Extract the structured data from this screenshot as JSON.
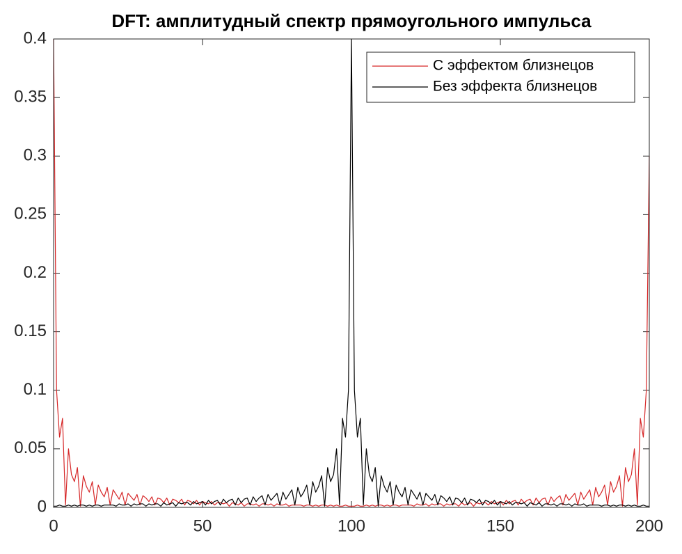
{
  "chart_data": {
    "type": "line",
    "title": "DFT: амплитудный спектр прямоугольного импульса",
    "xlim": [
      0,
      200
    ],
    "ylim": [
      0,
      0.4
    ],
    "xticks": [
      0,
      50,
      100,
      150,
      200
    ],
    "yticks": [
      0,
      0.05,
      0.1,
      0.15,
      0.2,
      0.25,
      0.3,
      0.35,
      0.4
    ],
    "grid": false,
    "legend": "northeast",
    "x": [
      0,
      1,
      2,
      3,
      4,
      5,
      6,
      7,
      8,
      9,
      10,
      11,
      12,
      13,
      14,
      15,
      16,
      17,
      18,
      19,
      20,
      21,
      22,
      23,
      24,
      25,
      26,
      27,
      28,
      29,
      30,
      31,
      32,
      33,
      34,
      35,
      36,
      37,
      38,
      39,
      40,
      41,
      42,
      43,
      44,
      45,
      46,
      47,
      48,
      49,
      50,
      51,
      52,
      53,
      54,
      55,
      56,
      57,
      58,
      59,
      60,
      61,
      62,
      63,
      64,
      65,
      66,
      67,
      68,
      69,
      70,
      71,
      72,
      73,
      74,
      75,
      76,
      77,
      78,
      79,
      80,
      81,
      82,
      83,
      84,
      85,
      86,
      87,
      88,
      89,
      90,
      91,
      92,
      93,
      94,
      95,
      96,
      97,
      98,
      99,
      100,
      101,
      102,
      103,
      104,
      105,
      106,
      107,
      108,
      109,
      110,
      111,
      112,
      113,
      114,
      115,
      116,
      117,
      118,
      119,
      120,
      121,
      122,
      123,
      124,
      125,
      126,
      127,
      128,
      129,
      130,
      131,
      132,
      133,
      134,
      135,
      136,
      137,
      138,
      139,
      140,
      141,
      142,
      143,
      144,
      145,
      146,
      147,
      148,
      149,
      150,
      151,
      152,
      153,
      154,
      155,
      156,
      157,
      158,
      159,
      160,
      161,
      162,
      163,
      164,
      165,
      166,
      167,
      168,
      169,
      170,
      171,
      172,
      173,
      174,
      175,
      176,
      177,
      178,
      179,
      180,
      181,
      182,
      183,
      184,
      185,
      186,
      187,
      188,
      189,
      190,
      191,
      192,
      193,
      194,
      195,
      196,
      197,
      198,
      199,
      200
    ],
    "series": [
      {
        "name": "С эффектом близнецов",
        "color": "#d62728",
        "values": [
          0.4,
          0.1,
          0.06,
          0.076,
          0.002,
          0.05,
          0.028,
          0.022,
          0.034,
          0.001,
          0.027,
          0.018,
          0.013,
          0.022,
          0.002,
          0.019,
          0.013,
          0.009,
          0.017,
          0.002,
          0.015,
          0.011,
          0.007,
          0.013,
          0.002,
          0.012,
          0.009,
          0.006,
          0.011,
          0.002,
          0.01,
          0.008,
          0.005,
          0.009,
          0.002,
          0.008,
          0.007,
          0.004,
          0.008,
          0.002,
          0.007,
          0.006,
          0.004,
          0.007,
          0.002,
          0.006,
          0.005,
          0.003,
          0.006,
          0.002,
          0.005,
          0.004,
          0.003,
          0.005,
          0.002,
          0.004,
          0.004,
          0.003,
          0.004,
          0.001,
          0.004,
          0.003,
          0.002,
          0.004,
          0.001,
          0.003,
          0.003,
          0.002,
          0.003,
          0.001,
          0.003,
          0.003,
          0.002,
          0.003,
          0.001,
          0.003,
          0.002,
          0.002,
          0.003,
          0.001,
          0.002,
          0.002,
          0.002,
          0.002,
          0.001,
          0.002,
          0.002,
          0.001,
          0.002,
          0.001,
          0.002,
          0.002,
          0.001,
          0.002,
          0.001,
          0.002,
          0.001,
          0.001,
          0.002,
          0.001,
          0.001,
          0.001,
          0.002,
          0.001,
          0.001,
          0.002,
          0.001,
          0.002,
          0.001,
          0.002,
          0.002,
          0.001,
          0.002,
          0.001,
          0.002,
          0.002,
          0.001,
          0.002,
          0.002,
          0.002,
          0.002,
          0.001,
          0.003,
          0.002,
          0.002,
          0.003,
          0.001,
          0.003,
          0.002,
          0.003,
          0.003,
          0.001,
          0.003,
          0.002,
          0.003,
          0.003,
          0.001,
          0.004,
          0.002,
          0.003,
          0.004,
          0.001,
          0.004,
          0.003,
          0.004,
          0.004,
          0.002,
          0.005,
          0.003,
          0.004,
          0.005,
          0.002,
          0.006,
          0.003,
          0.005,
          0.006,
          0.002,
          0.007,
          0.004,
          0.006,
          0.007,
          0.002,
          0.008,
          0.004,
          0.007,
          0.008,
          0.002,
          0.009,
          0.005,
          0.008,
          0.01,
          0.002,
          0.011,
          0.006,
          0.009,
          0.012,
          0.002,
          0.013,
          0.007,
          0.011,
          0.015,
          0.002,
          0.017,
          0.009,
          0.013,
          0.019,
          0.002,
          0.022,
          0.013,
          0.018,
          0.027,
          0.001,
          0.034,
          0.022,
          0.028,
          0.05,
          0.002,
          0.076,
          0.06,
          0.1,
          0.3
        ]
      },
      {
        "name": "Без эффекта близнецов",
        "color": "#000000",
        "values": [
          0.001,
          0.001,
          0.002,
          0.001,
          0.001,
          0.002,
          0.001,
          0.002,
          0.001,
          0.002,
          0.002,
          0.001,
          0.002,
          0.001,
          0.002,
          0.002,
          0.001,
          0.002,
          0.002,
          0.002,
          0.002,
          0.001,
          0.003,
          0.002,
          0.002,
          0.003,
          0.001,
          0.003,
          0.002,
          0.003,
          0.003,
          0.001,
          0.003,
          0.002,
          0.003,
          0.003,
          0.001,
          0.004,
          0.002,
          0.003,
          0.004,
          0.001,
          0.004,
          0.003,
          0.004,
          0.004,
          0.002,
          0.005,
          0.003,
          0.004,
          0.005,
          0.002,
          0.006,
          0.003,
          0.005,
          0.006,
          0.002,
          0.007,
          0.004,
          0.006,
          0.007,
          0.002,
          0.008,
          0.004,
          0.007,
          0.008,
          0.002,
          0.009,
          0.005,
          0.008,
          0.01,
          0.002,
          0.011,
          0.006,
          0.009,
          0.012,
          0.002,
          0.013,
          0.007,
          0.011,
          0.015,
          0.002,
          0.017,
          0.009,
          0.013,
          0.019,
          0.002,
          0.022,
          0.013,
          0.018,
          0.027,
          0.001,
          0.034,
          0.022,
          0.028,
          0.05,
          0.002,
          0.076,
          0.06,
          0.1,
          0.4,
          0.1,
          0.06,
          0.076,
          0.002,
          0.05,
          0.028,
          0.022,
          0.034,
          0.001,
          0.027,
          0.018,
          0.013,
          0.022,
          0.002,
          0.019,
          0.013,
          0.009,
          0.017,
          0.002,
          0.015,
          0.011,
          0.007,
          0.013,
          0.002,
          0.012,
          0.009,
          0.006,
          0.011,
          0.002,
          0.01,
          0.008,
          0.005,
          0.009,
          0.002,
          0.008,
          0.007,
          0.004,
          0.008,
          0.002,
          0.007,
          0.006,
          0.004,
          0.007,
          0.002,
          0.006,
          0.005,
          0.003,
          0.006,
          0.002,
          0.005,
          0.004,
          0.003,
          0.005,
          0.002,
          0.004,
          0.004,
          0.003,
          0.004,
          0.001,
          0.004,
          0.003,
          0.002,
          0.004,
          0.001,
          0.003,
          0.003,
          0.002,
          0.003,
          0.001,
          0.003,
          0.003,
          0.002,
          0.003,
          0.001,
          0.003,
          0.002,
          0.002,
          0.003,
          0.001,
          0.002,
          0.002,
          0.002,
          0.002,
          0.001,
          0.002,
          0.002,
          0.001,
          0.002,
          0.001,
          0.002,
          0.002,
          0.001,
          0.002,
          0.001,
          0.002,
          0.001,
          0.001,
          0.002,
          0.001,
          0.001
        ]
      }
    ]
  }
}
